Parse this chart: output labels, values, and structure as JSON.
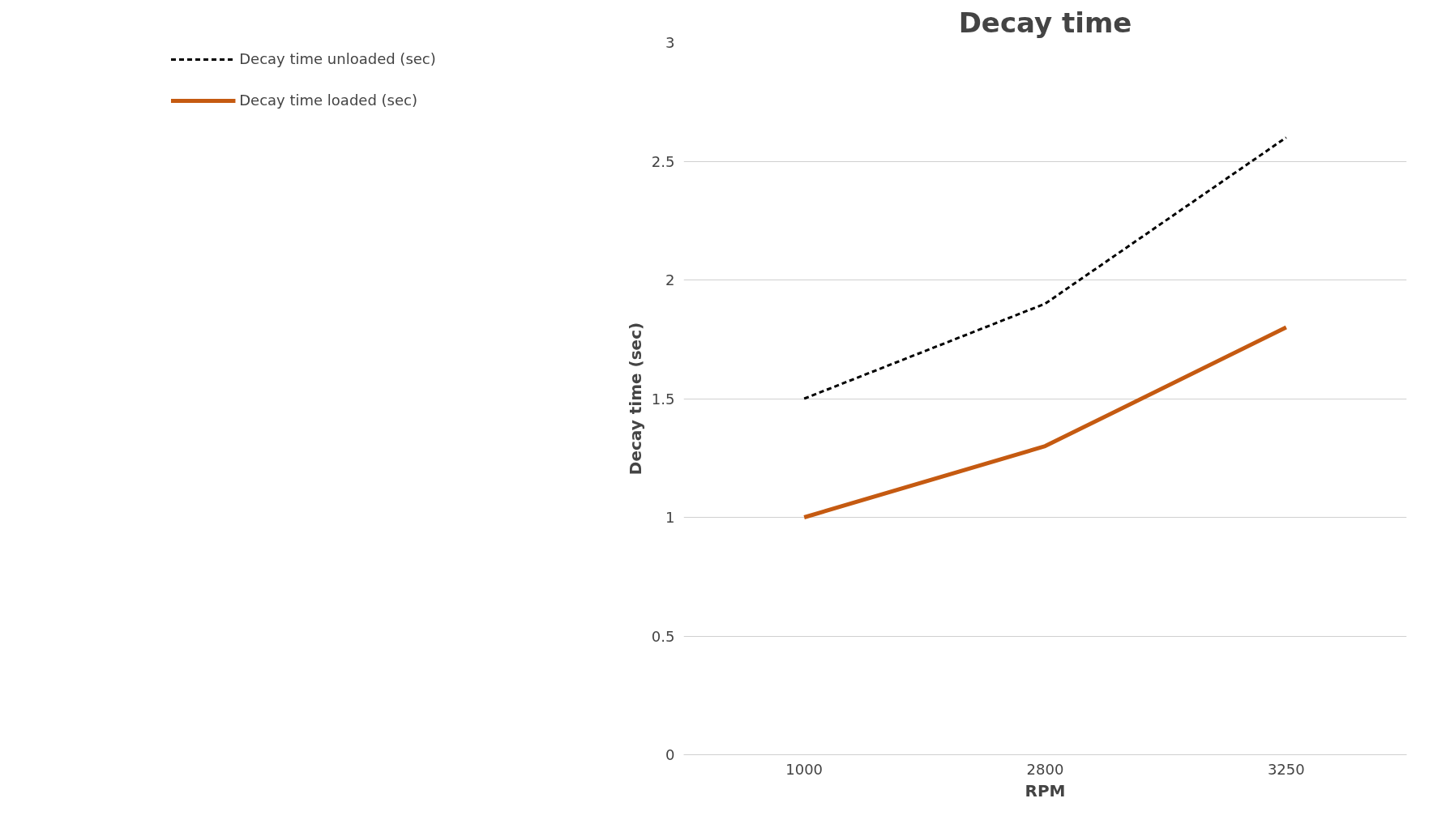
{
  "chart_data": {
    "type": "line",
    "title": "Decay time",
    "xlabel": "RPM",
    "ylabel": "Decay time (sec)",
    "categories": [
      "1000",
      "2800",
      "3250"
    ],
    "series": [
      {
        "name": "Decay time unloaded (sec)",
        "color": "#000000",
        "line_style": "dashed",
        "values": [
          1.5,
          1.9,
          2.6
        ]
      },
      {
        "name": "Decay time loaded (sec)",
        "color": "#c55a11",
        "line_style": "solid",
        "values": [
          1.0,
          1.3,
          1.8
        ]
      }
    ],
    "ylim": [
      0,
      3
    ],
    "yticks": [
      0,
      0.5,
      1,
      1.5,
      2,
      2.5,
      3
    ],
    "grid": "y",
    "legend": "left",
    "marker": "none"
  }
}
